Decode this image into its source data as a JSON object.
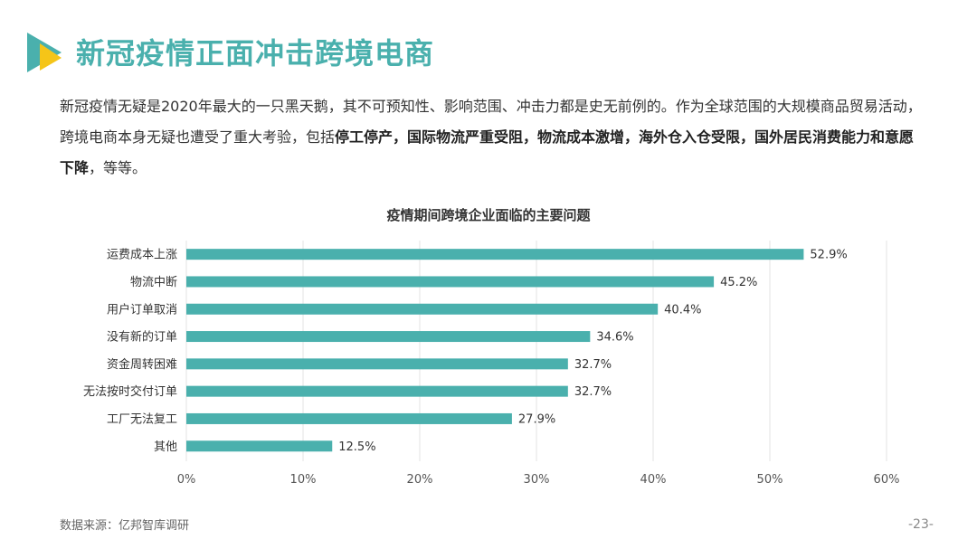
{
  "header": {
    "title": "新冠疫情正面冲击跨境电商",
    "logo_colors": [
      "#4ab0ad",
      "#f5c518"
    ]
  },
  "intro": {
    "plain1": "新冠疫情无疑是2020年最大的一只黑天鹅，其不可预知性、影响范围、冲击力都是史无前例的。作为全球范围的大规模商品贸易活动，跨境电商本身无疑也遭受了重大考验，包括",
    "bold1": "停工停产，国际物流严重受阻，物流成本激增，海外仓入仓受限，国外居民消费能力和意愿下降",
    "plain2": "，等等。"
  },
  "chart_data": {
    "type": "bar",
    "orientation": "horizontal",
    "title": "疫情期间跨境企业面临的主要问题",
    "categories": [
      "运费成本上涨",
      "物流中断",
      "用户订单取消",
      "没有新的订单",
      "资金周转困难",
      "无法按时交付订单",
      "工厂无法复工",
      "其他"
    ],
    "values": [
      52.9,
      45.2,
      40.4,
      34.6,
      32.7,
      32.7,
      27.9,
      12.5
    ],
    "value_labels": [
      "52.9%",
      "45.2%",
      "40.4%",
      "34.6%",
      "32.7%",
      "32.7%",
      "27.9%",
      "12.5%"
    ],
    "xlim": [
      0,
      60
    ],
    "xticks": [
      0,
      10,
      20,
      30,
      40,
      50,
      60
    ],
    "xtick_labels": [
      "0%",
      "10%",
      "20%",
      "30%",
      "40%",
      "50%",
      "60%"
    ],
    "grid": "vertical",
    "bar_color": "#4ab0ad"
  },
  "footer": {
    "source": "数据来源：亿邦智库调研",
    "page": "-23-"
  }
}
